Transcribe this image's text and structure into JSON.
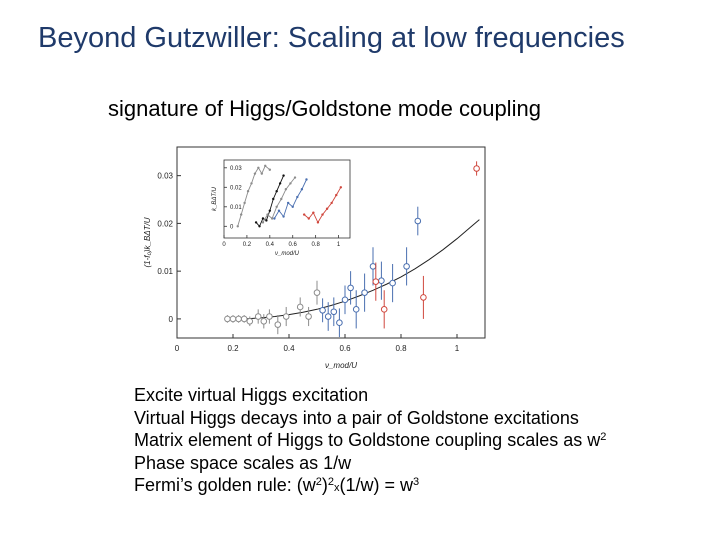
{
  "slide": {
    "title": "Beyond Gutzwiller: Scaling at low frequencies",
    "subtitle": "signature of Higgs/Goldstone mode coupling"
  },
  "bullets": {
    "line1": "Excite virtual Higgs excitation",
    "line2": "Virtual Higgs decays into a pair of Goldstone excitations",
    "line3_text": "Matrix element of Higgs to Goldstone coupling scales as w",
    "line3_sup": "2",
    "line4": "Phase space scales as 1/w",
    "line5_pre": "Fermi’s golden rule: (w",
    "line5_sup1": "2",
    "line5_mid": ")",
    "line5_sup2": "2",
    "line5_x": "x",
    "line5_post": "(1/w) = w",
    "line5_sup3": "3"
  },
  "chart_data": [
    {
      "type": "scatter",
      "id": "main",
      "xlabel": "ν_mod/U",
      "ylabel": "(1-f₀)k_BΔT/U",
      "xlim": [
        0,
        1.1
      ],
      "ylim": [
        -0.004,
        0.036
      ],
      "xticks": [
        "0",
        "0.2",
        "0.4",
        "0.6",
        "0.8",
        "1"
      ],
      "xtick_values": [
        0,
        0.2,
        0.4,
        0.6,
        0.8,
        1.0
      ],
      "yticks": [
        "0",
        "0.01",
        "0.02",
        "0.03"
      ],
      "ytick_values": [
        0,
        0.01,
        0.02,
        0.03
      ],
      "colors": {
        "gray": "#8c8c8c",
        "blue": "#4a6fb0",
        "red": "#d0473d",
        "curve": "#222222"
      },
      "curve": {
        "x": [
          0.18,
          0.25,
          0.3,
          0.35,
          0.4,
          0.45,
          0.5,
          0.55,
          0.6,
          0.65,
          0.7,
          0.75,
          0.8,
          0.85,
          0.9,
          0.95,
          1.0,
          1.05,
          1.08
        ],
        "y": [
          0,
          5e-05,
          0.0002,
          0.0005,
          0.0009,
          0.0014,
          0.002,
          0.0028,
          0.0037,
          0.0048,
          0.006,
          0.0073,
          0.0088,
          0.0105,
          0.0124,
          0.0145,
          0.0168,
          0.0193,
          0.0208
        ]
      },
      "points": [
        {
          "x": 0.18,
          "y": 0.0,
          "e": 0.0008,
          "c": "gray"
        },
        {
          "x": 0.2,
          "y": 0.0,
          "e": 0.0008,
          "c": "gray"
        },
        {
          "x": 0.22,
          "y": 0.0,
          "e": 0.0008,
          "c": "gray"
        },
        {
          "x": 0.24,
          "y": 0.0,
          "e": 0.0008,
          "c": "gray"
        },
        {
          "x": 0.26,
          "y": -0.0005,
          "e": 0.001,
          "c": "gray"
        },
        {
          "x": 0.29,
          "y": 0.0005,
          "e": 0.0015,
          "c": "gray"
        },
        {
          "x": 0.31,
          "y": -0.0005,
          "e": 0.0015,
          "c": "gray"
        },
        {
          "x": 0.33,
          "y": 0.0005,
          "e": 0.0015,
          "c": "gray"
        },
        {
          "x": 0.36,
          "y": -0.0012,
          "e": 0.002,
          "c": "gray"
        },
        {
          "x": 0.39,
          "y": 0.0005,
          "e": 0.002,
          "c": "gray"
        },
        {
          "x": 0.44,
          "y": 0.0025,
          "e": 0.002,
          "c": "gray"
        },
        {
          "x": 0.47,
          "y": 0.0005,
          "e": 0.002,
          "c": "gray"
        },
        {
          "x": 0.5,
          "y": 0.0055,
          "e": 0.0025,
          "c": "gray"
        },
        {
          "x": 0.52,
          "y": 0.0018,
          "e": 0.0025,
          "c": "blue"
        },
        {
          "x": 0.54,
          "y": 0.0005,
          "e": 0.003,
          "c": "blue"
        },
        {
          "x": 0.56,
          "y": 0.0015,
          "e": 0.003,
          "c": "blue"
        },
        {
          "x": 0.58,
          "y": -0.0008,
          "e": 0.003,
          "c": "blue"
        },
        {
          "x": 0.6,
          "y": 0.004,
          "e": 0.003,
          "c": "blue"
        },
        {
          "x": 0.62,
          "y": 0.0065,
          "e": 0.0035,
          "c": "blue"
        },
        {
          "x": 0.64,
          "y": 0.002,
          "e": 0.004,
          "c": "blue"
        },
        {
          "x": 0.67,
          "y": 0.0055,
          "e": 0.004,
          "c": "blue"
        },
        {
          "x": 0.7,
          "y": 0.011,
          "e": 0.004,
          "c": "blue"
        },
        {
          "x": 0.73,
          "y": 0.008,
          "e": 0.004,
          "c": "blue"
        },
        {
          "x": 0.77,
          "y": 0.0075,
          "e": 0.004,
          "c": "blue"
        },
        {
          "x": 0.82,
          "y": 0.011,
          "e": 0.004,
          "c": "blue"
        },
        {
          "x": 0.86,
          "y": 0.0205,
          "e": 0.003,
          "c": "blue"
        },
        {
          "x": 0.71,
          "y": 0.0078,
          "e": 0.004,
          "c": "red"
        },
        {
          "x": 0.74,
          "y": 0.002,
          "e": 0.004,
          "c": "red"
        },
        {
          "x": 0.88,
          "y": 0.0045,
          "e": 0.0045,
          "c": "red"
        },
        {
          "x": 1.07,
          "y": 0.0315,
          "e": 0.0015,
          "c": "red"
        }
      ]
    },
    {
      "type": "line",
      "id": "inset",
      "xlabel": "ν_mod/U",
      "ylabel": "k_BΔT/U",
      "xlim": [
        0,
        1.1
      ],
      "ylim": [
        -0.006,
        0.034
      ],
      "xticks": [
        "0",
        "0.2",
        "0.4",
        "0.6",
        "0.8",
        "1"
      ],
      "xtick_values": [
        0,
        0.2,
        0.4,
        0.6,
        0.8,
        1.0
      ],
      "yticks": [
        "0",
        "0.01",
        "0.02",
        "0.03"
      ],
      "ytick_values": [
        0,
        0.01,
        0.02,
        0.03
      ],
      "series": [
        {
          "c": "gray",
          "x": [
            0.12,
            0.15,
            0.18,
            0.21,
            0.24,
            0.27,
            0.3,
            0.33,
            0.36,
            0.4
          ],
          "y": [
            0.0,
            0.006,
            0.012,
            0.018,
            0.022,
            0.027,
            0.03,
            0.027,
            0.031,
            0.029
          ]
        },
        {
          "c": "black",
          "x": [
            0.28,
            0.31,
            0.34,
            0.37,
            0.4,
            0.43,
            0.46,
            0.49,
            0.52
          ],
          "y": [
            0.002,
            0.0,
            0.004,
            0.003,
            0.008,
            0.014,
            0.018,
            0.022,
            0.026
          ]
        },
        {
          "c": "gray",
          "x": [
            0.34,
            0.38,
            0.42,
            0.46,
            0.5,
            0.54,
            0.58,
            0.62
          ],
          "y": [
            0.002,
            0.006,
            0.004,
            0.01,
            0.014,
            0.019,
            0.022,
            0.025
          ]
        },
        {
          "c": "blue",
          "x": [
            0.44,
            0.48,
            0.52,
            0.56,
            0.6,
            0.64,
            0.68,
            0.72
          ],
          "y": [
            0.004,
            0.008,
            0.005,
            0.012,
            0.01,
            0.015,
            0.019,
            0.024
          ]
        },
        {
          "c": "red",
          "x": [
            0.7,
            0.74,
            0.78,
            0.82,
            0.86,
            0.9,
            0.94,
            0.98,
            1.02
          ],
          "y": [
            0.006,
            0.004,
            0.007,
            0.002,
            0.006,
            0.009,
            0.012,
            0.016,
            0.02
          ]
        }
      ]
    }
  ]
}
